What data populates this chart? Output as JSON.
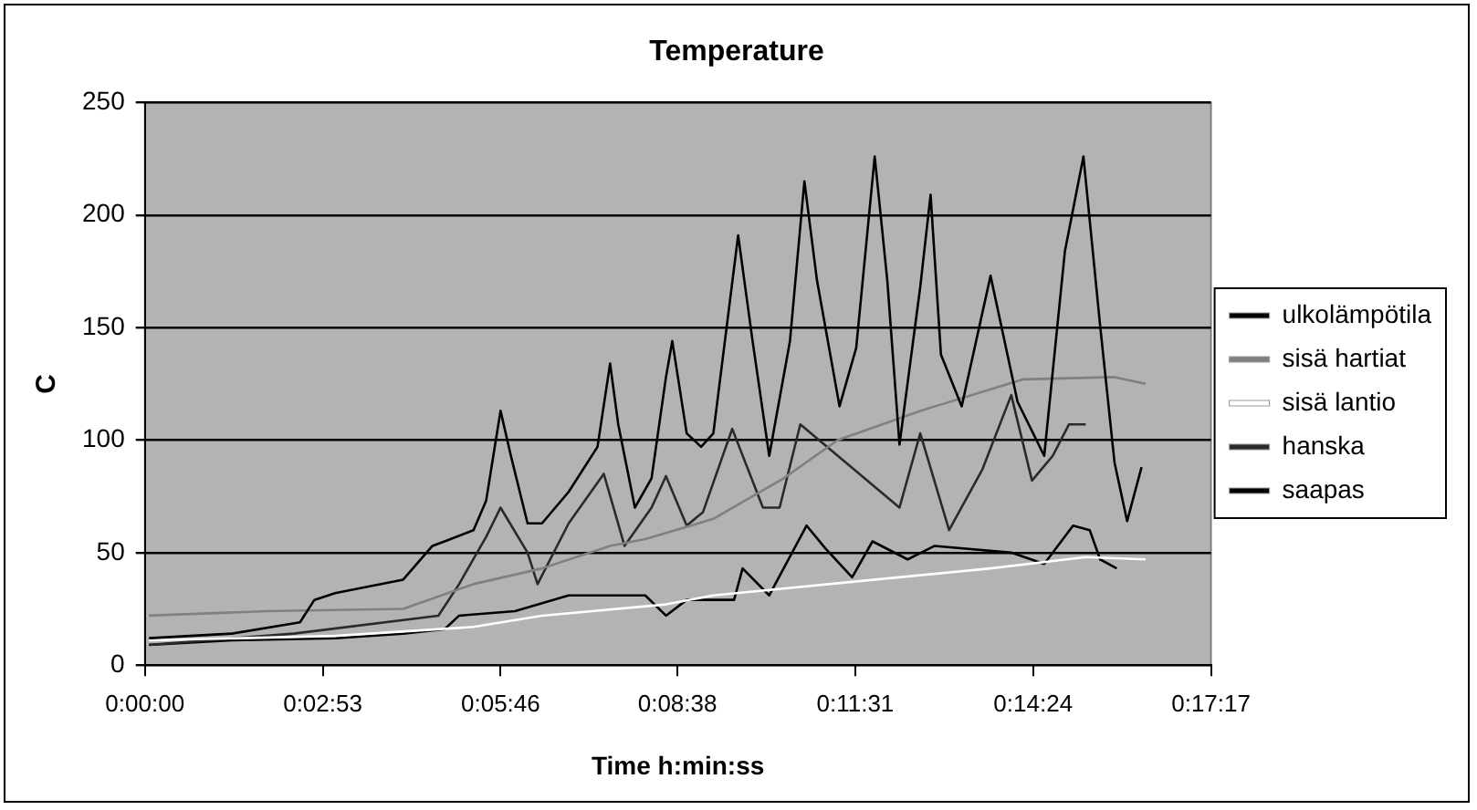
{
  "chart_data": {
    "type": "line",
    "title": "Temperature",
    "xlabel": "Time h:min:ss",
    "ylabel": "C",
    "xlim": [
      0,
      0.28806
    ],
    "xticks": [
      {
        "value": 0,
        "label": "0:00:00"
      },
      {
        "value": 0.04806,
        "label": "0:02:53"
      },
      {
        "value": 0.09611,
        "label": "0:05:46"
      },
      {
        "value": 0.14389,
        "label": "0:08:38"
      },
      {
        "value": 0.19194,
        "label": "0:11:31"
      },
      {
        "value": 0.24,
        "label": "0:14:24"
      },
      {
        "value": 0.28806,
        "label": "0:17:17"
      }
    ],
    "ylim": [
      0,
      250
    ],
    "yticks": [
      0,
      50,
      100,
      150,
      200,
      250
    ],
    "grid": "y",
    "legend": "right",
    "marker": "none",
    "line_style": "solid",
    "series": [
      {
        "name": "ulkolämpötila",
        "color": "#000000",
        "x": [
          0.0011,
          0.0235,
          0.0419,
          0.0458,
          0.0514,
          0.0698,
          0.0777,
          0.081,
          0.0888,
          0.0922,
          0.0961,
          0.0989,
          0.1034,
          0.1073,
          0.1145,
          0.1223,
          0.1257,
          0.1279,
          0.1324,
          0.1369,
          0.1408,
          0.1425,
          0.1464,
          0.1503,
          0.1536,
          0.1603,
          0.1642,
          0.1687,
          0.1743,
          0.1782,
          0.1816,
          0.1877,
          0.1922,
          0.1972,
          0.2006,
          0.2039,
          0.2095,
          0.2123,
          0.2151,
          0.2207,
          0.2285,
          0.2358,
          0.243,
          0.2486,
          0.2536,
          0.2581,
          0.262,
          0.2654,
          0.2693
        ],
        "values": [
          12,
          14,
          19,
          29,
          32,
          38,
          53,
          55,
          60,
          73,
          113,
          93,
          63,
          63,
          77,
          97,
          134,
          107,
          70,
          83,
          128,
          144,
          103,
          97,
          103,
          191,
          144,
          93,
          144,
          215,
          171,
          115,
          141,
          226,
          171,
          98,
          168,
          209,
          138,
          115,
          173,
          117,
          93,
          184,
          226,
          151,
          90,
          64,
          88
        ]
      },
      {
        "name": "sisä hartiat",
        "color": "#808080",
        "x": [
          0.0011,
          0.033,
          0.0698,
          0.0888,
          0.1073,
          0.1257,
          0.1352,
          0.1536,
          0.1726,
          0.1872,
          0.2095,
          0.2374,
          0.262,
          0.2704
        ],
        "values": [
          22,
          24,
          25,
          36,
          43,
          53,
          56,
          65,
          83,
          100,
          113,
          127,
          128,
          125
        ]
      },
      {
        "name": "sisä lantio",
        "color": "#ffffff",
        "x": [
          0.0011,
          0.0514,
          0.0888,
          0.1073,
          0.1408,
          0.1536,
          0.1911,
          0.2285,
          0.2542,
          0.2704
        ],
        "values": [
          11,
          13,
          17,
          22,
          27,
          31,
          37,
          43,
          48,
          47
        ]
      },
      {
        "name": "hanska",
        "color": "#2a2a2a",
        "x": [
          0.0011,
          0.0402,
          0.0793,
          0.0849,
          0.0922,
          0.0961,
          0.1034,
          0.1061,
          0.1145,
          0.124,
          0.1296,
          0.1369,
          0.1408,
          0.1464,
          0.1508,
          0.1587,
          0.167,
          0.1715,
          0.1771,
          0.2039,
          0.2095,
          0.2173,
          0.2263,
          0.2341,
          0.2397,
          0.2453,
          0.2497,
          0.2542
        ],
        "values": [
          9,
          14,
          22,
          36,
          57,
          70,
          50,
          36,
          63,
          85,
          53,
          70,
          84,
          62,
          68,
          105,
          70,
          70,
          107,
          70,
          103,
          60,
          87,
          120,
          82,
          93,
          107,
          107
        ]
      },
      {
        "name": "saapas",
        "color": "#000000",
        "x": [
          0.0011,
          0.0235,
          0.0514,
          0.0698,
          0.081,
          0.0849,
          0.1,
          0.1145,
          0.1352,
          0.1408,
          0.1464,
          0.1592,
          0.1615,
          0.1687,
          0.1788,
          0.1838,
          0.1911,
          0.1966,
          0.2061,
          0.2134,
          0.2341,
          0.243,
          0.2508,
          0.2553,
          0.2581,
          0.2626
        ],
        "values": [
          9,
          11,
          12,
          14,
          16,
          22,
          24,
          31,
          31,
          22,
          29,
          29,
          43,
          31,
          62,
          52,
          39,
          55,
          47,
          53,
          50,
          45,
          62,
          60,
          47,
          43
        ]
      }
    ]
  }
}
